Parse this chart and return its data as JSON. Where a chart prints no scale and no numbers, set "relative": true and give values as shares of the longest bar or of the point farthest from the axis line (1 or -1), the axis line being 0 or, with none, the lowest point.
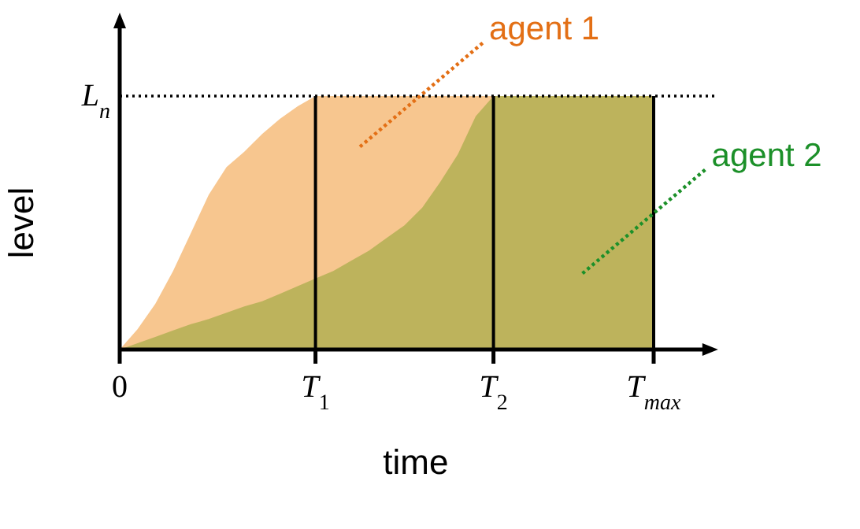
{
  "chart_data": {
    "type": "area",
    "relative": true,
    "xlabel": "time",
    "ylabel": "level",
    "categories": [
      "0",
      null,
      null,
      null,
      null,
      null,
      null,
      null,
      null,
      null,
      null,
      "T$_{1}$",
      null,
      null,
      null,
      null,
      null,
      null,
      null,
      null,
      null,
      "T$_{2}$",
      null,
      null,
      null,
      null,
      null,
      null,
      null,
      null,
      "T$_{max}$",
      null,
      null,
      null
    ],
    "series": [
      {
        "name": "agent 1",
        "color": "#f7c68f",
        "values": [
          0,
          0.08,
          0.18,
          0.31,
          0.46,
          0.61,
          0.72,
          0.78,
          0.85,
          0.91,
          0.96,
          1,
          1,
          1,
          1,
          1,
          1,
          1,
          1,
          1,
          1,
          1,
          null,
          null,
          null,
          null,
          null,
          null,
          null,
          null,
          null,
          null,
          null,
          null
        ]
      },
      {
        "name": "agent 2",
        "color": "#bdb35c",
        "values": [
          0,
          0.025,
          0.05,
          0.075,
          0.1,
          0.12,
          0.145,
          0.17,
          0.19,
          0.22,
          0.25,
          0.28,
          0.31,
          0.35,
          0.39,
          0.44,
          0.49,
          0.56,
          0.66,
          0.77,
          0.92,
          1,
          1,
          1,
          1,
          1,
          1,
          1,
          1,
          1,
          1,
          null,
          null,
          null
        ]
      }
    ],
    "ref_lines": [
      {
        "axis": "y",
        "value": 1,
        "label": "L$_{n}$",
        "line_style": "dotted",
        "color": "#000000"
      },
      {
        "axis": "x",
        "value": "T$_{1}$",
        "color": "#000000"
      },
      {
        "axis": "x",
        "value": "T$_{2}$",
        "color": "#000000"
      },
      {
        "axis": "x",
        "value": "T$_{max}$",
        "color": "#000000"
      }
    ]
  }
}
